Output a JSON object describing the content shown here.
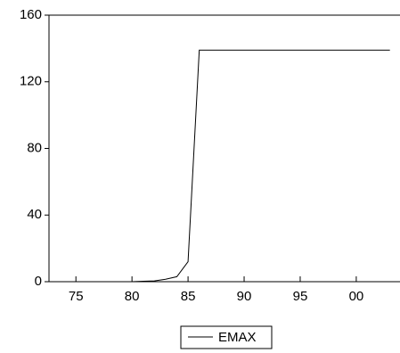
{
  "chart_data": {
    "type": "line",
    "x": [
      1973,
      1974,
      1975,
      1976,
      1977,
      1978,
      1979,
      1980,
      1981,
      1982,
      1983,
      1984,
      1985,
      1986,
      1987,
      1988,
      1989,
      1990,
      1991,
      1992,
      1993,
      1994,
      1995,
      1996,
      1997,
      1998,
      1999,
      2000,
      2001,
      2002,
      2003
    ],
    "series": [
      {
        "name": "EMAX",
        "color": "#000000",
        "values": [
          0,
          0,
          0,
          0,
          0,
          0,
          0,
          0,
          0.3,
          0.5,
          1.5,
          3,
          12,
          139,
          139,
          139,
          139,
          139,
          139,
          139,
          139,
          139,
          139,
          139,
          139,
          139,
          139,
          139,
          139,
          139,
          139
        ]
      }
    ],
    "xlim": [
      1972.6,
      2003.9
    ],
    "xticks": [
      {
        "value": 1975,
        "label": "75"
      },
      {
        "value": 1980,
        "label": "80"
      },
      {
        "value": 1985,
        "label": "85"
      },
      {
        "value": 1990,
        "label": "90"
      },
      {
        "value": 1995,
        "label": "95"
      },
      {
        "value": 2000,
        "label": "00"
      }
    ],
    "ylim": [
      0,
      160
    ],
    "yticks": [
      0,
      40,
      80,
      120,
      160
    ],
    "grid": false
  }
}
